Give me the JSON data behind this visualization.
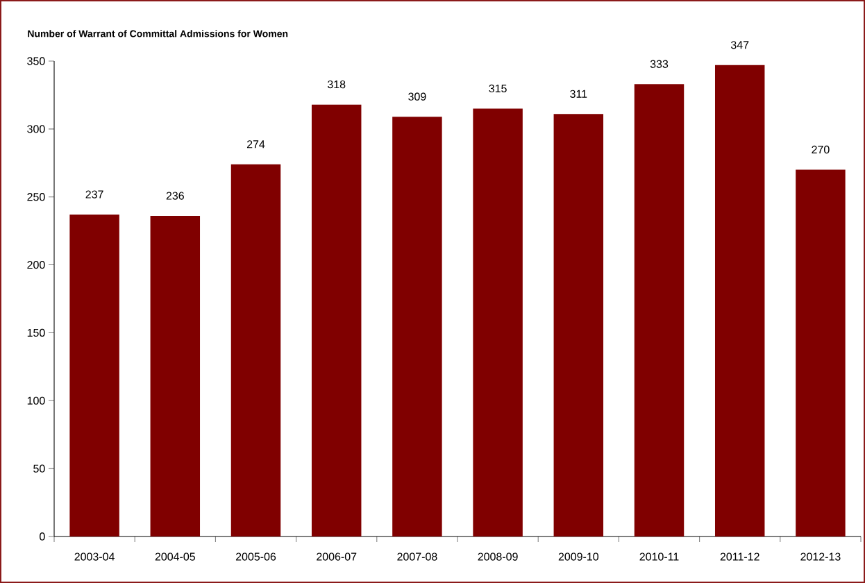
{
  "chart_data": {
    "type": "bar",
    "ylabel": "Number of Warrant of Committal Admissions for Women",
    "categories": [
      "2003-04",
      "2004-05",
      "2005-06",
      "2006-07",
      "2007-08",
      "2008-09",
      "2009-10",
      "2010-11",
      "2011-12",
      "2012-13"
    ],
    "values": [
      237,
      236,
      274,
      318,
      309,
      315,
      311,
      333,
      347,
      270
    ],
    "color": "#800000",
    "ylim": [
      0,
      350
    ],
    "yticks": [
      0,
      50,
      100,
      150,
      200,
      250,
      300,
      350
    ],
    "data_labels": true
  }
}
